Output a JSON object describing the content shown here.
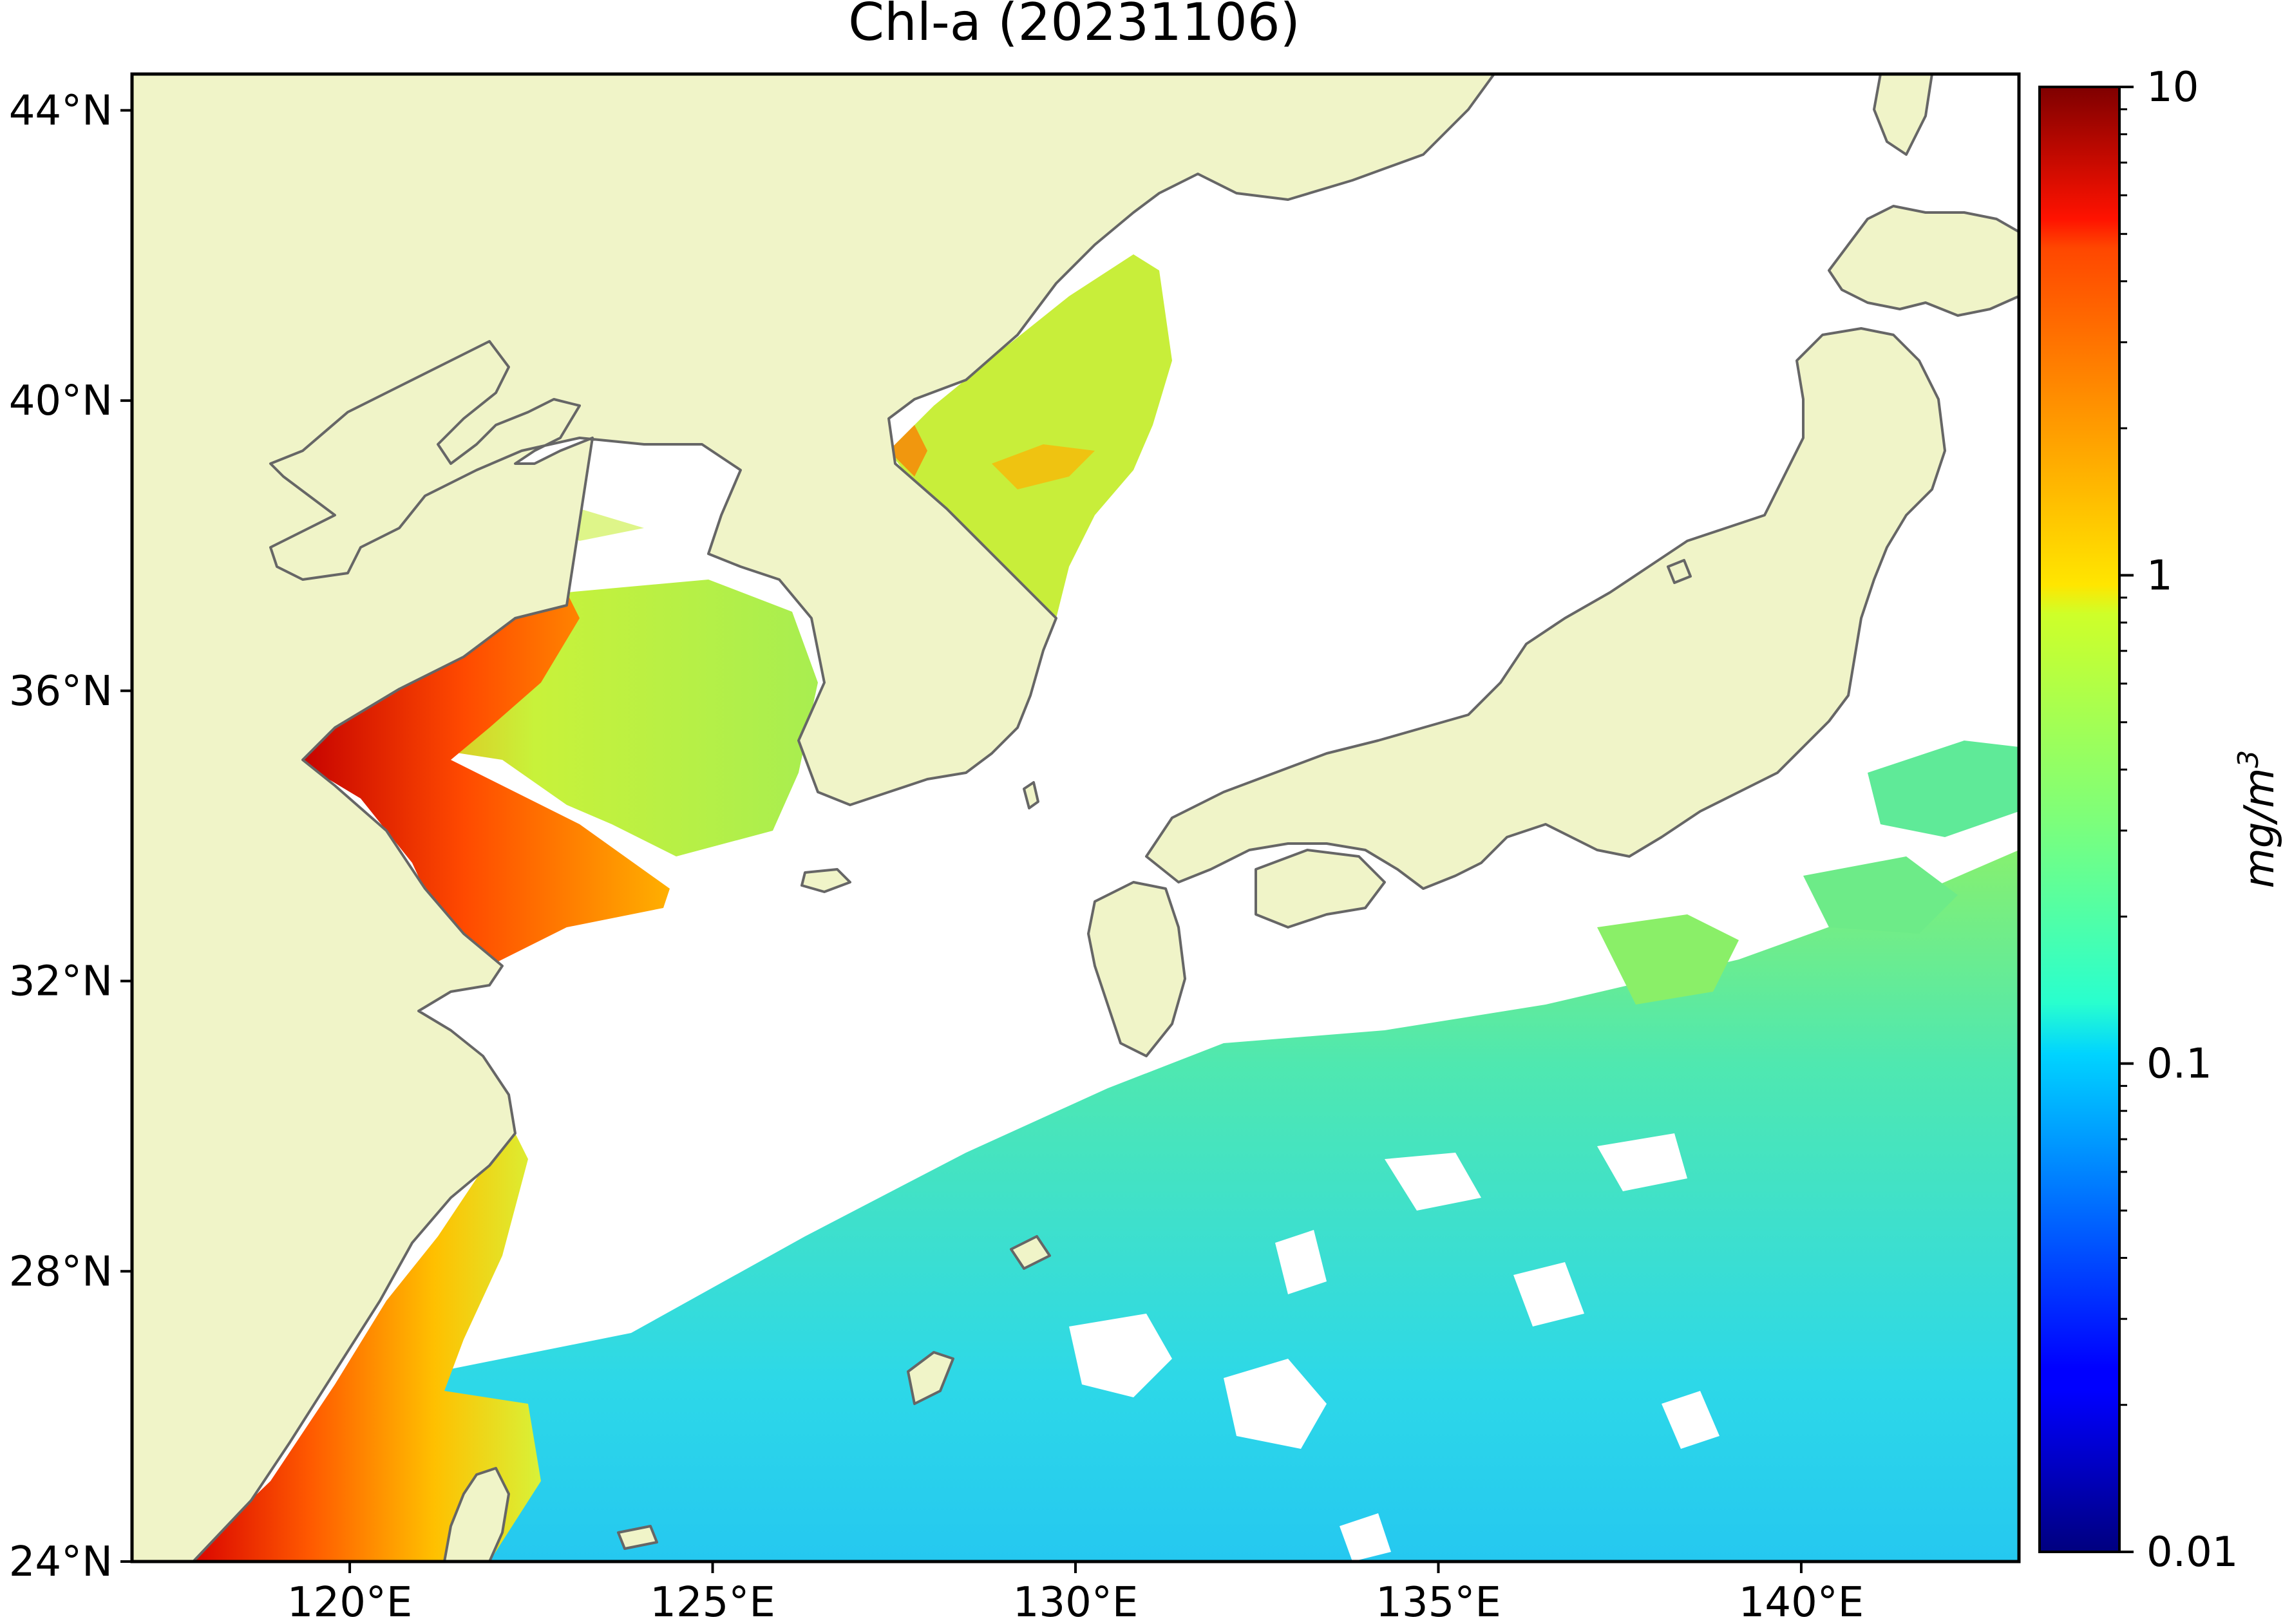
{
  "title": "Chl-a (20231106)",
  "map": {
    "lon_range": [
      117,
      143
    ],
    "lat_range": [
      24,
      44.5
    ],
    "lat_ticks": [
      {
        "value": 44,
        "label": "44°N"
      },
      {
        "value": 40,
        "label": "40°N"
      },
      {
        "value": 36,
        "label": "36°N"
      },
      {
        "value": 32,
        "label": "32°N"
      },
      {
        "value": 28,
        "label": "28°N"
      },
      {
        "value": 24,
        "label": "24°N"
      }
    ],
    "lon_ticks": [
      {
        "value": 120,
        "label": "120°E"
      },
      {
        "value": 125,
        "label": "125°E"
      },
      {
        "value": 130,
        "label": "130°E"
      },
      {
        "value": 135,
        "label": "135°E"
      },
      {
        "value": 140,
        "label": "140°E"
      }
    ],
    "colors": {
      "land": "#f0f4c8",
      "no_data": "#ffffff",
      "coast": "#666666"
    }
  },
  "colorbar": {
    "label": "mg/m",
    "label_superscript": "3",
    "scale": "log",
    "range": [
      0.01,
      10
    ],
    "colormap": "jet",
    "ticks": [
      {
        "value": 10,
        "label": "10"
      },
      {
        "value": 1,
        "label": "1"
      },
      {
        "value": 0.1,
        "label": "0.1"
      },
      {
        "value": 0.01,
        "label": "0.01"
      }
    ]
  }
}
